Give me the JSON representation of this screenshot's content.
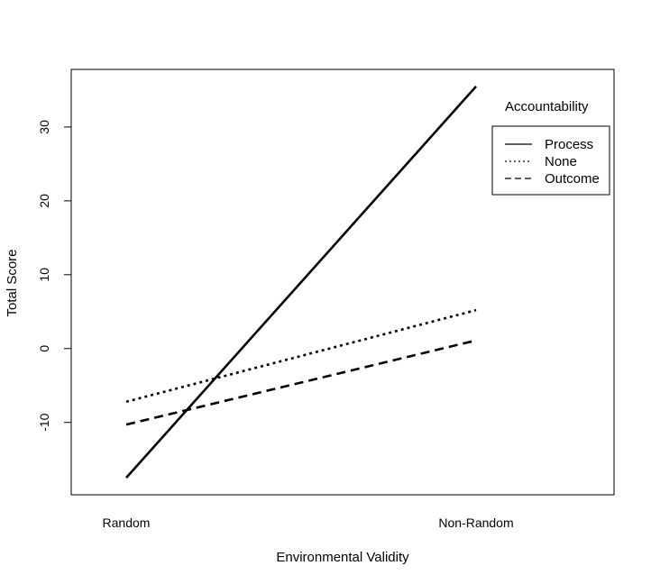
{
  "chart_data": {
    "type": "line",
    "title": "",
    "xlabel": "Environmental Validity",
    "ylabel": "Total Score",
    "categories": [
      "Random",
      "Non-Random"
    ],
    "yticks": [
      -10,
      0,
      10,
      20,
      30
    ],
    "ylim": [
      -19.8,
      37.8
    ],
    "grid": false,
    "legend": {
      "title": "Accountability",
      "placement": "top-right"
    },
    "series": [
      {
        "name": "Process",
        "style": "solid",
        "values": [
          -17.5,
          35.5
        ]
      },
      {
        "name": "None",
        "style": "dotted",
        "values": [
          -7.2,
          5.2
        ]
      },
      {
        "name": "Outcome",
        "style": "dashed",
        "values": [
          -10.3,
          1.1
        ]
      }
    ]
  }
}
